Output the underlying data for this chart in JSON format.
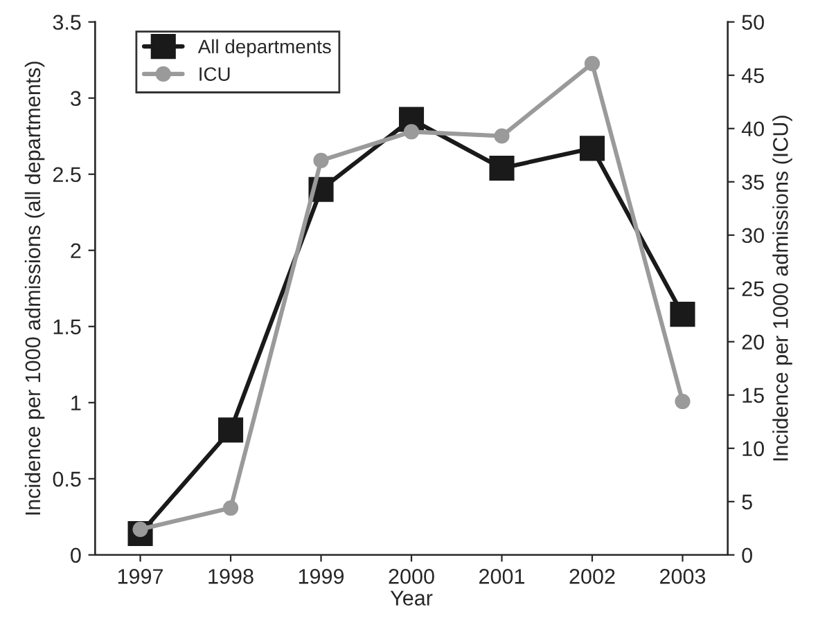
{
  "chart_data": {
    "type": "line",
    "xlabel": "Year",
    "ylabel": "Incidence per 1000 admissions (all departments)",
    "y2label": "Incidence per 1000 admissions (ICU)",
    "categories": [
      "1997",
      "1998",
      "1999",
      "2000",
      "2001",
      "2002",
      "2003"
    ],
    "series": [
      {
        "name": "All departments",
        "color": "#1a1a1a",
        "marker": "square",
        "values": [
          0.14,
          0.82,
          2.4,
          2.86,
          2.54,
          2.67,
          1.58
        ]
      },
      {
        "name": "ICU",
        "color": "#9a9a9a",
        "marker": "circle",
        "axis": "y2",
        "values": [
          2.4,
          4.4,
          37,
          39.7,
          39.3,
          46.1,
          14.4
        ]
      }
    ],
    "ylim": [
      0,
      3.5
    ],
    "yticks": [
      0,
      0.5,
      1,
      1.5,
      2,
      2.5,
      3,
      3.5
    ],
    "y2lim": [
      0,
      50
    ],
    "y2ticks": [
      0,
      5,
      10,
      15,
      20,
      25,
      30,
      35,
      40,
      45,
      50
    ],
    "legend": "top left",
    "grid": false,
    "line_style": "solid"
  }
}
